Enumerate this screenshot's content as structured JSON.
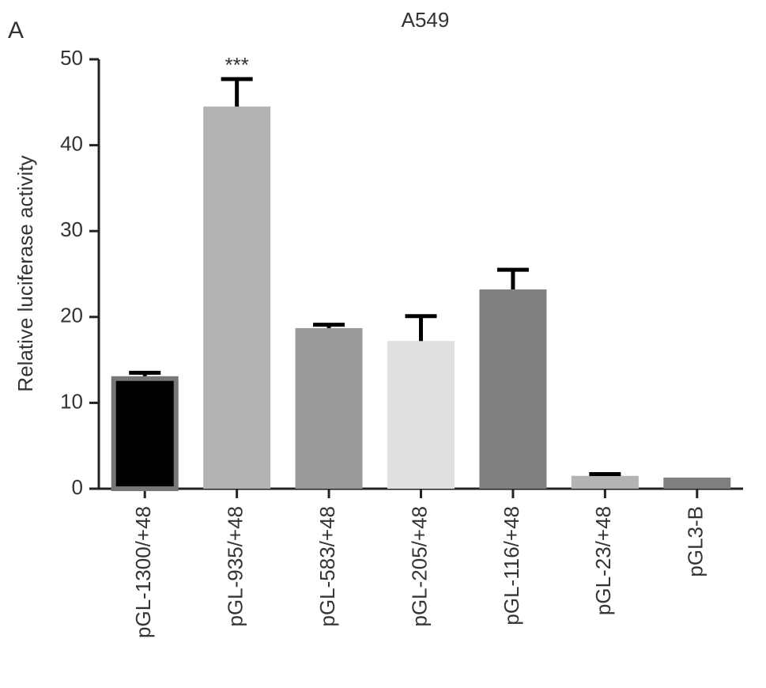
{
  "chart_data": {
    "type": "bar",
    "panel_label": "A",
    "title": "A549",
    "y_label": "Relative luciferase activity",
    "categories": [
      "pGL-1300/+48",
      "pGL-935/+48",
      "pGL-583/+48",
      "pGL-205/+48",
      "pGL-116/+48",
      "pGL-23/+48",
      "pGL3-B"
    ],
    "values": [
      13.1,
      44.5,
      18.7,
      17.2,
      23.2,
      1.5,
      1.3
    ],
    "errors": [
      0.4,
      3.2,
      0.4,
      2.9,
      2.3,
      0.2,
      null
    ],
    "colors": [
      "#000000",
      "#b3b3b3",
      "#9a9a9a",
      "#e0e0e0",
      "#808080",
      "#b3b3b3",
      "#7f7f7f"
    ],
    "annotations": [
      {
        "text": "***",
        "category": "pGL-935/+48"
      }
    ],
    "ylim": [
      0,
      50
    ],
    "yticks": [
      0,
      10,
      20,
      30,
      40,
      50
    ],
    "grid": false
  }
}
